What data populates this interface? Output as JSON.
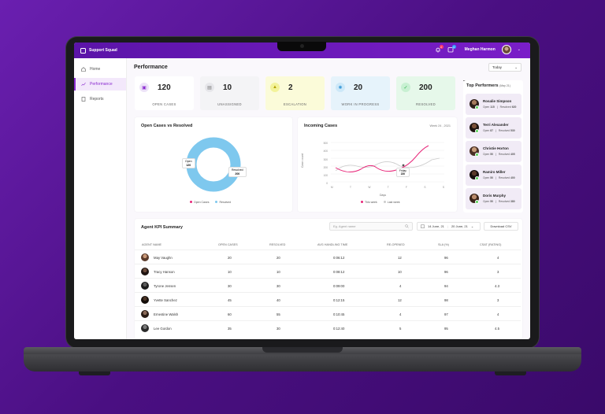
{
  "app": {
    "brand": "Support Squad",
    "user": "Meghan Harmon",
    "notif_count": "2",
    "msg_count": "3"
  },
  "sidebar": {
    "items": [
      {
        "label": "Home"
      },
      {
        "label": "Performance"
      },
      {
        "label": "Reports"
      }
    ]
  },
  "header": {
    "title": "Performance",
    "period": "Today"
  },
  "kpis": [
    {
      "value": "120",
      "label": "OPEN CASES"
    },
    {
      "value": "10",
      "label": "UNASSIGNED"
    },
    {
      "value": "2",
      "label": "ESCALATION"
    },
    {
      "value": "20",
      "label": "WORK IN PROGRESS"
    },
    {
      "value": "200",
      "label": "RESOLVED"
    }
  ],
  "donut": {
    "title": "Open Cases vs Resolved",
    "open_label": "Open",
    "open_value": "120",
    "resolved_label": "Resolved",
    "resolved_value": "200",
    "legend_open": "Open Cases",
    "legend_resolved": "Resolved"
  },
  "incoming": {
    "title": "Incoming Cases",
    "week": "Week 24 , 2021",
    "ylabel": "Case count",
    "xlabel": "Days",
    "tooltip_day": "Friday",
    "tooltip_value": "220",
    "legend_this": "This week",
    "legend_last": "Last week",
    "yticks": [
      "500",
      "400",
      "300",
      "200",
      "100",
      "0"
    ],
    "xticks": [
      "M",
      "T",
      "W",
      "T",
      "F",
      "S",
      "S"
    ]
  },
  "top_performers": {
    "title": "Top Performers",
    "period": "(May 21)",
    "open_label": "Open",
    "resolved_label": "Resolved",
    "items": [
      {
        "name": "Rosalie Simpson",
        "open": "115",
        "resolved": "620"
      },
      {
        "name": "Terri Alexander",
        "open": "87",
        "resolved": "530"
      },
      {
        "name": "Christie Horton",
        "open": "50",
        "resolved": "405"
      },
      {
        "name": "Ramiro Miller",
        "open": "50",
        "resolved": "400"
      },
      {
        "name": "Doris Murphy",
        "open": "50",
        "resolved": "380"
      }
    ]
  },
  "kpi_summary": {
    "title": "Agent KPI Summary",
    "search_placeholder": "Eg. Agent name",
    "date_from": "14 June, 21",
    "date_to": "20 June, 21",
    "download": "Download CSV",
    "columns": [
      "AGENT NAME",
      "OPEN CASES",
      "RESOLVED",
      "AVG HANDLING TIME",
      "RE-OPENED",
      "SLA (%)",
      "CSAT (RATING)"
    ],
    "rows": [
      {
        "name": "May Vaughn",
        "open": "20",
        "resolved": "20",
        "aht": "0:06:12",
        "reopened": "12",
        "sla": "96",
        "csat": "4"
      },
      {
        "name": "Tracy Hanson",
        "open": "10",
        "resolved": "10",
        "aht": "0:08:12",
        "reopened": "10",
        "sla": "96",
        "csat": "3"
      },
      {
        "name": "Tyrone Jensen",
        "open": "30",
        "resolved": "30",
        "aht": "0:09:00",
        "reopened": "4",
        "sla": "94",
        "csat": "4.3"
      },
      {
        "name": "Yvette Sanchez",
        "open": "45",
        "resolved": "40",
        "aht": "0:12:15",
        "reopened": "12",
        "sla": "98",
        "csat": "3"
      },
      {
        "name": "Ernestine Walsh",
        "open": "60",
        "resolved": "55",
        "aht": "0:10:45",
        "reopened": "4",
        "sla": "97",
        "csat": "4"
      },
      {
        "name": "Lee Gordon",
        "open": "35",
        "resolved": "30",
        "aht": "0:12:40",
        "reopened": "5",
        "sla": "95",
        "csat": "4.5"
      }
    ]
  },
  "colors": {
    "accent": "#8a2bd0",
    "open": "#e8287a",
    "resolved": "#7ec8ee"
  }
}
